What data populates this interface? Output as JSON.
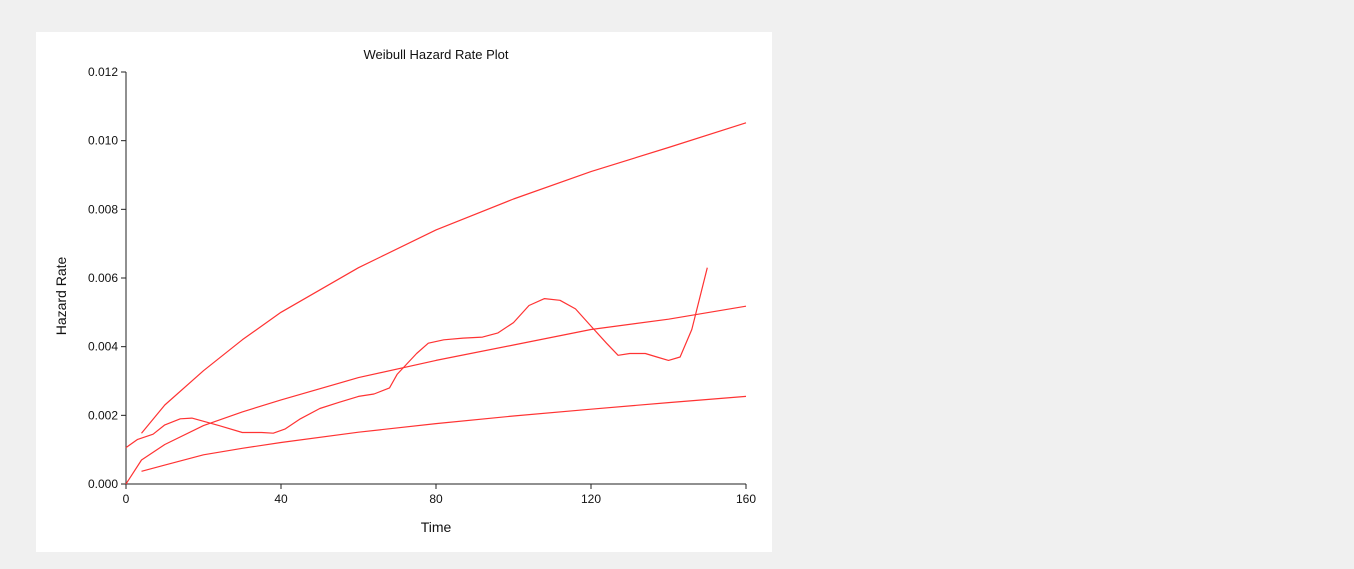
{
  "chart_data": {
    "type": "line",
    "title": "Weibull Hazard Rate Plot",
    "xlabel": "Time",
    "ylabel": "Hazard Rate",
    "xlim": [
      0,
      160
    ],
    "ylim": [
      0,
      0.012
    ],
    "x_ticks": [
      0,
      40,
      80,
      120,
      160
    ],
    "x_tick_labels": [
      "0",
      "40",
      "80",
      "120",
      "160"
    ],
    "y_ticks": [
      0,
      0.002,
      0.004,
      0.006,
      0.008,
      0.01,
      0.012
    ],
    "y_tick_labels": [
      "0.000",
      "0.002",
      "0.004",
      "0.006",
      "0.008",
      "0.010",
      "0.012"
    ],
    "grid": false,
    "line_color": "#ff3333",
    "series": [
      {
        "values": [
          [
            4,
            0.00148
          ],
          [
            10,
            0.0023
          ],
          [
            20,
            0.0033
          ],
          [
            30,
            0.0042
          ],
          [
            40,
            0.005
          ],
          [
            60,
            0.0063
          ],
          [
            80,
            0.0074
          ],
          [
            100,
            0.0083
          ],
          [
            120,
            0.0091
          ],
          [
            140,
            0.0098
          ],
          [
            160,
            0.01052
          ]
        ]
      },
      {
        "values": [
          [
            0,
            0.0
          ],
          [
            4,
            0.0007
          ],
          [
            10,
            0.00115
          ],
          [
            20,
            0.0017
          ],
          [
            30,
            0.0021
          ],
          [
            40,
            0.00245
          ],
          [
            60,
            0.0031
          ],
          [
            80,
            0.0036
          ],
          [
            100,
            0.00405
          ],
          [
            120,
            0.0045
          ],
          [
            140,
            0.0048
          ],
          [
            160,
            0.00518
          ]
        ]
      },
      {
        "values": [
          [
            4,
            0.00037
          ],
          [
            10,
            0.00055
          ],
          [
            20,
            0.00085
          ],
          [
            30,
            0.00104
          ],
          [
            40,
            0.00121
          ],
          [
            60,
            0.00151
          ],
          [
            80,
            0.00176
          ],
          [
            100,
            0.00198
          ],
          [
            120,
            0.00218
          ],
          [
            140,
            0.00237
          ],
          [
            160,
            0.00255
          ]
        ]
      },
      {
        "values": [
          [
            0,
            0.00106
          ],
          [
            3,
            0.0013
          ],
          [
            7,
            0.00145
          ],
          [
            10,
            0.00172
          ],
          [
            14,
            0.0019
          ],
          [
            17,
            0.00192
          ],
          [
            24,
            0.0017
          ],
          [
            30,
            0.0015
          ],
          [
            35,
            0.0015
          ],
          [
            38,
            0.00148
          ],
          [
            41,
            0.0016
          ],
          [
            45,
            0.0019
          ],
          [
            50,
            0.0022
          ],
          [
            55,
            0.00238
          ],
          [
            60,
            0.00255
          ],
          [
            64,
            0.00262
          ],
          [
            68,
            0.0028
          ],
          [
            70,
            0.0032
          ],
          [
            75,
            0.0038
          ],
          [
            78,
            0.0041
          ],
          [
            82,
            0.0042
          ],
          [
            87,
            0.00425
          ],
          [
            92,
            0.00428
          ],
          [
            96,
            0.0044
          ],
          [
            100,
            0.0047
          ],
          [
            104,
            0.0052
          ],
          [
            108,
            0.0054
          ],
          [
            112,
            0.00535
          ],
          [
            116,
            0.0051
          ],
          [
            120,
            0.0046
          ],
          [
            124,
            0.0041
          ],
          [
            127,
            0.00375
          ],
          [
            130,
            0.0038
          ],
          [
            134,
            0.0038
          ],
          [
            137,
            0.0037
          ],
          [
            140,
            0.0036
          ],
          [
            143,
            0.0037
          ],
          [
            146,
            0.0045
          ],
          [
            150,
            0.0063
          ]
        ]
      }
    ]
  }
}
